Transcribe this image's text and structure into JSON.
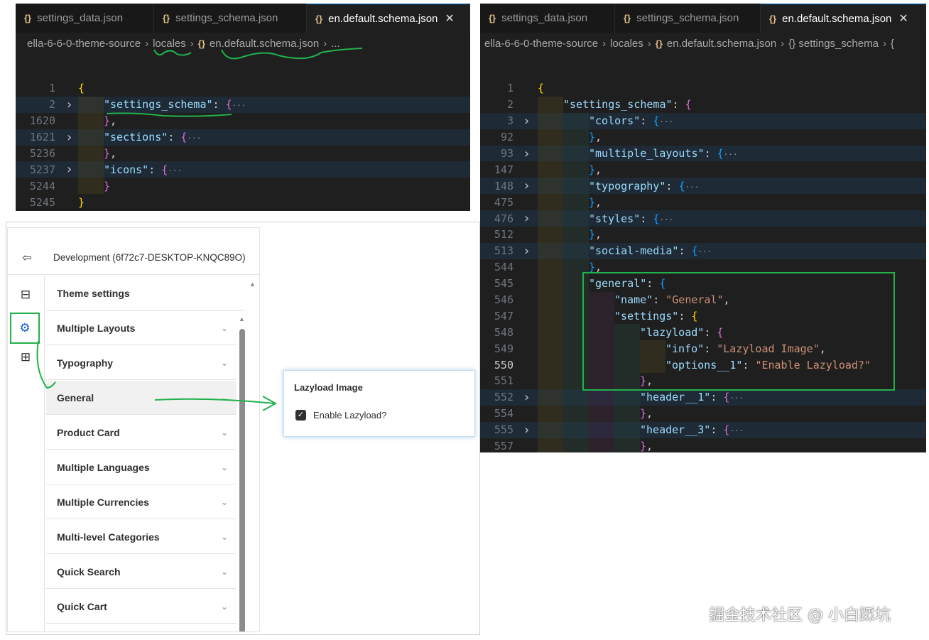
{
  "left_editor": {
    "tabs": [
      {
        "label": "settings_data.json",
        "icon": "json-braces-icon",
        "active": false
      },
      {
        "label": "settings_schema.json",
        "icon": "json-braces-icon",
        "active": false
      },
      {
        "label": "en.default.schema.json",
        "icon": "json-braces-icon",
        "active": true
      }
    ],
    "breadcrumb": [
      "ella-6-6-0-theme-source",
      "locales",
      "en.default.schema.json",
      "..."
    ],
    "lines": [
      {
        "n": "1",
        "indent": 0,
        "tokens": [
          [
            "{",
            "b1"
          ]
        ]
      },
      {
        "n": "2",
        "indent": 1,
        "fold": true,
        "hl": true,
        "tokens": [
          [
            "\"settings_schema\"",
            "key"
          ],
          [
            ": ",
            "p"
          ],
          [
            "{",
            "b2"
          ],
          [
            "···",
            "el"
          ]
        ]
      },
      {
        "n": "1620",
        "indent": 1,
        "tokens": [
          [
            "}",
            "b2"
          ],
          [
            ",",
            "p"
          ]
        ]
      },
      {
        "n": "1621",
        "indent": 1,
        "fold": true,
        "hl": true,
        "tokens": [
          [
            "\"sections\"",
            "key"
          ],
          [
            ": ",
            "p"
          ],
          [
            "{",
            "b2"
          ],
          [
            "···",
            "el"
          ]
        ]
      },
      {
        "n": "5236",
        "indent": 1,
        "tokens": [
          [
            "}",
            "b2"
          ],
          [
            ",",
            "p"
          ]
        ]
      },
      {
        "n": "5237",
        "indent": 1,
        "fold": true,
        "hl": true,
        "tokens": [
          [
            "\"icons\"",
            "key"
          ],
          [
            ": ",
            "p"
          ],
          [
            "{",
            "b2"
          ],
          [
            "···",
            "el"
          ]
        ]
      },
      {
        "n": "5244",
        "indent": 1,
        "tokens": [
          [
            "}",
            "b2"
          ]
        ]
      },
      {
        "n": "5245",
        "indent": 0,
        "tokens": [
          [
            "}",
            "b1"
          ]
        ]
      }
    ]
  },
  "right_editor": {
    "tabs": [
      {
        "label": "settings_data.json",
        "icon": "json-braces-icon",
        "active": false
      },
      {
        "label": "settings_schema.json",
        "icon": "json-braces-icon",
        "active": false
      },
      {
        "label": "en.default.schema.json",
        "icon": "json-braces-icon",
        "active": true
      }
    ],
    "breadcrumb": [
      "ella-6-6-0-theme-source",
      "locales",
      "en.default.schema.json",
      "{} settings_schema",
      "{"
    ],
    "lines": [
      {
        "n": "1",
        "indent": 0,
        "tokens": [
          [
            "{",
            "b1"
          ]
        ]
      },
      {
        "n": "2",
        "indent": 1,
        "tokens": [
          [
            "\"settings_schema\"",
            "key"
          ],
          [
            ": ",
            "p"
          ],
          [
            "{",
            "b2"
          ]
        ]
      },
      {
        "n": "3",
        "indent": 2,
        "fold": true,
        "hl": true,
        "tokens": [
          [
            "\"colors\"",
            "key"
          ],
          [
            ": ",
            "p"
          ],
          [
            "{",
            "b3"
          ],
          [
            "···",
            "el"
          ]
        ]
      },
      {
        "n": "92",
        "indent": 2,
        "tokens": [
          [
            "}",
            "b3"
          ],
          [
            ",",
            "p"
          ]
        ]
      },
      {
        "n": "93",
        "indent": 2,
        "fold": true,
        "hl": true,
        "tokens": [
          [
            "\"multiple_layouts\"",
            "key"
          ],
          [
            ": ",
            "p"
          ],
          [
            "{",
            "b3"
          ],
          [
            "···",
            "el"
          ]
        ]
      },
      {
        "n": "147",
        "indent": 2,
        "tokens": [
          [
            "}",
            "b3"
          ],
          [
            ",",
            "p"
          ]
        ]
      },
      {
        "n": "148",
        "indent": 2,
        "fold": true,
        "hl": true,
        "tokens": [
          [
            "\"typography\"",
            "key"
          ],
          [
            ": ",
            "p"
          ],
          [
            "{",
            "b3"
          ],
          [
            "···",
            "el"
          ]
        ]
      },
      {
        "n": "475",
        "indent": 2,
        "tokens": [
          [
            "}",
            "b3"
          ],
          [
            ",",
            "p"
          ]
        ]
      },
      {
        "n": "476",
        "indent": 2,
        "fold": true,
        "hl": true,
        "tokens": [
          [
            "\"styles\"",
            "key"
          ],
          [
            ": ",
            "p"
          ],
          [
            "{",
            "b3"
          ],
          [
            "···",
            "el"
          ]
        ]
      },
      {
        "n": "512",
        "indent": 2,
        "tokens": [
          [
            "}",
            "b3"
          ],
          [
            ",",
            "p"
          ]
        ]
      },
      {
        "n": "513",
        "indent": 2,
        "fold": true,
        "hl": true,
        "tokens": [
          [
            "\"social-media\"",
            "key"
          ],
          [
            ": ",
            "p"
          ],
          [
            "{",
            "b3"
          ],
          [
            "···",
            "el"
          ]
        ]
      },
      {
        "n": "544",
        "indent": 2,
        "tokens": [
          [
            "}",
            "b3"
          ],
          [
            ",",
            "p"
          ]
        ]
      },
      {
        "n": "545",
        "indent": 2,
        "tokens": [
          [
            "\"general\"",
            "key"
          ],
          [
            ": ",
            "p"
          ],
          [
            "{",
            "b3"
          ]
        ]
      },
      {
        "n": "546",
        "indent": 3,
        "tokens": [
          [
            "\"name\"",
            "key"
          ],
          [
            ": ",
            "p"
          ],
          [
            "\"General\"",
            "str"
          ],
          [
            ",",
            "p"
          ]
        ]
      },
      {
        "n": "547",
        "indent": 3,
        "tokens": [
          [
            "\"settings\"",
            "key"
          ],
          [
            ": ",
            "p"
          ],
          [
            "{",
            "b1"
          ]
        ]
      },
      {
        "n": "548",
        "indent": 4,
        "tokens": [
          [
            "\"lazyload\"",
            "key"
          ],
          [
            ": ",
            "p"
          ],
          [
            "{",
            "b2"
          ]
        ]
      },
      {
        "n": "549",
        "indent": 5,
        "tokens": [
          [
            "\"info\"",
            "key"
          ],
          [
            ": ",
            "p"
          ],
          [
            "\"Lazyload Image\"",
            "str"
          ],
          [
            ",",
            "p"
          ]
        ]
      },
      {
        "n": "550",
        "indent": 5,
        "current": true,
        "tokens": [
          [
            "\"options__1\"",
            "key"
          ],
          [
            ": ",
            "p"
          ],
          [
            "\"Enable Lazyload?\"",
            "str"
          ]
        ]
      },
      {
        "n": "551",
        "indent": 4,
        "tokens": [
          [
            "}",
            "b2"
          ],
          [
            ",",
            "p"
          ]
        ]
      },
      {
        "n": "552",
        "indent": 4,
        "fold": true,
        "hl": true,
        "tokens": [
          [
            "\"header__1\"",
            "key"
          ],
          [
            ": ",
            "p"
          ],
          [
            "{",
            "b2"
          ],
          [
            "···",
            "el"
          ]
        ]
      },
      {
        "n": "554",
        "indent": 4,
        "tokens": [
          [
            "}",
            "b2"
          ],
          [
            ",",
            "p"
          ]
        ]
      },
      {
        "n": "555",
        "indent": 4,
        "fold": true,
        "hl": true,
        "tokens": [
          [
            "\"header__3\"",
            "key"
          ],
          [
            ": ",
            "p"
          ],
          [
            "{",
            "b2"
          ],
          [
            "···",
            "el"
          ]
        ]
      },
      {
        "n": "557",
        "indent": 4,
        "tokens": [
          [
            "}",
            "b2"
          ],
          [
            ",",
            "p"
          ]
        ]
      }
    ]
  },
  "theme_panel": {
    "store_label": "Development (6f72c7-DESKTOP-KNQC89O)",
    "exit_icon": "exit-icon",
    "rail_icons": [
      "sections-icon",
      "gear-icon",
      "apps-add-icon"
    ],
    "active_rail": "gear-icon",
    "heading": "Theme settings",
    "items": [
      {
        "label": "Multiple Layouts"
      },
      {
        "label": "Typography"
      },
      {
        "label": "General",
        "selected": true
      },
      {
        "label": "Product Card"
      },
      {
        "label": "Multiple Languages"
      },
      {
        "label": "Multiple Currencies"
      },
      {
        "label": "Multi-level Categories"
      },
      {
        "label": "Quick Search"
      },
      {
        "label": "Quick Cart"
      }
    ]
  },
  "popup": {
    "title": "Lazyload Image",
    "checkbox_label": "Enable Lazyload?",
    "checked": true
  },
  "watermark": "掘金技术社区 @ 小白踩坑",
  "colors": {
    "annotation": "#22b14c",
    "accent": "#0078d4"
  }
}
